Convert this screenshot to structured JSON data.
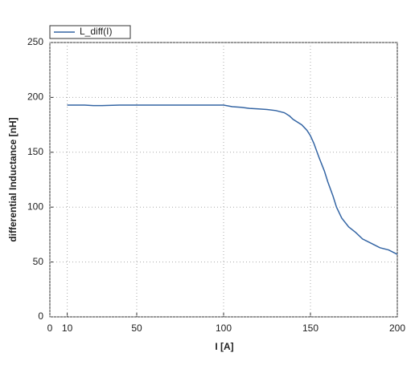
{
  "chart_data": {
    "type": "line",
    "xlabel": "I [A]",
    "ylabel": "differential Inductance [nH]",
    "x": [
      10,
      20,
      25,
      30,
      40,
      50,
      60,
      70,
      80,
      90,
      100,
      105,
      110,
      115,
      120,
      125,
      130,
      135,
      138,
      140,
      145,
      148,
      150,
      152,
      155,
      158,
      160,
      163,
      165,
      168,
      172,
      176,
      180,
      185,
      190,
      195,
      200
    ],
    "series": [
      {
        "name": "L_diff(I)",
        "color": "#3465a4",
        "values": [
          193,
          193,
          192.5,
          192.5,
          193,
          193,
          193,
          193,
          193,
          193,
          193,
          191.5,
          191,
          190,
          189.5,
          189,
          188,
          186,
          183,
          180,
          175,
          170,
          165,
          158,
          145,
          133,
          123,
          110,
          100,
          90,
          82,
          77,
          71,
          67,
          63,
          61,
          57
        ]
      }
    ],
    "xlim": [
      0,
      200
    ],
    "xticks": [
      0,
      10,
      50,
      100,
      150,
      200
    ],
    "ylim": [
      0,
      250
    ],
    "yticks": [
      0,
      50,
      100,
      150,
      200,
      250
    ],
    "grid": true,
    "legend": "top-left"
  }
}
